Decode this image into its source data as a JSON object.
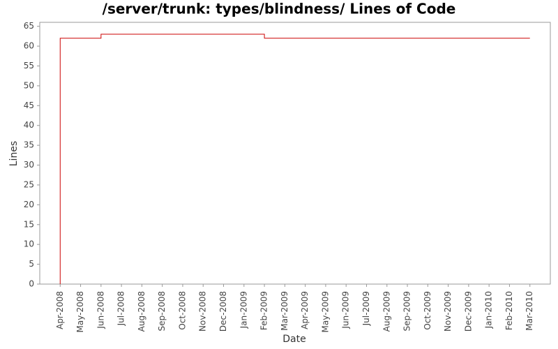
{
  "chart_data": {
    "type": "line",
    "title": "/server/trunk: types/blindness/ Lines of Code",
    "x_label": "Date",
    "y_label": "Lines",
    "x": [
      "2008-04",
      "2008-04",
      "2008-06",
      "2008-06",
      "2009-02",
      "2009-02",
      "2010-03"
    ],
    "series": [
      {
        "name": "Lines",
        "color": "#cc0000",
        "values": [
          0,
          62,
          62,
          63,
          63,
          62,
          62
        ]
      }
    ],
    "xlim": [
      "2008-03",
      "2010-04"
    ],
    "xticks": [
      {
        "value": "2008-04",
        "label": "Apr-2008"
      },
      {
        "value": "2008-05",
        "label": "May-2008"
      },
      {
        "value": "2008-06",
        "label": "Jun-2008"
      },
      {
        "value": "2008-07",
        "label": "Jul-2008"
      },
      {
        "value": "2008-08",
        "label": "Aug-2008"
      },
      {
        "value": "2008-09",
        "label": "Sep-2008"
      },
      {
        "value": "2008-10",
        "label": "Oct-2008"
      },
      {
        "value": "2008-11",
        "label": "Nov-2008"
      },
      {
        "value": "2008-12",
        "label": "Dec-2008"
      },
      {
        "value": "2009-01",
        "label": "Jan-2009"
      },
      {
        "value": "2009-02",
        "label": "Feb-2009"
      },
      {
        "value": "2009-03",
        "label": "Mar-2009"
      },
      {
        "value": "2009-04",
        "label": "Apr-2009"
      },
      {
        "value": "2009-05",
        "label": "May-2009"
      },
      {
        "value": "2009-06",
        "label": "Jun-2009"
      },
      {
        "value": "2009-07",
        "label": "Jul-2009"
      },
      {
        "value": "2009-08",
        "label": "Aug-2009"
      },
      {
        "value": "2009-09",
        "label": "Sep-2009"
      },
      {
        "value": "2009-10",
        "label": "Oct-2009"
      },
      {
        "value": "2009-11",
        "label": "Nov-2009"
      },
      {
        "value": "2009-12",
        "label": "Dec-2009"
      },
      {
        "value": "2010-01",
        "label": "Jan-2010"
      },
      {
        "value": "2010-02",
        "label": "Feb-2010"
      },
      {
        "value": "2010-03",
        "label": "Mar-2010"
      }
    ],
    "ylim": [
      0,
      66
    ],
    "yticks": [
      0,
      5,
      10,
      15,
      20,
      25,
      30,
      35,
      40,
      45,
      50,
      55,
      60,
      65
    ],
    "grid": false
  }
}
